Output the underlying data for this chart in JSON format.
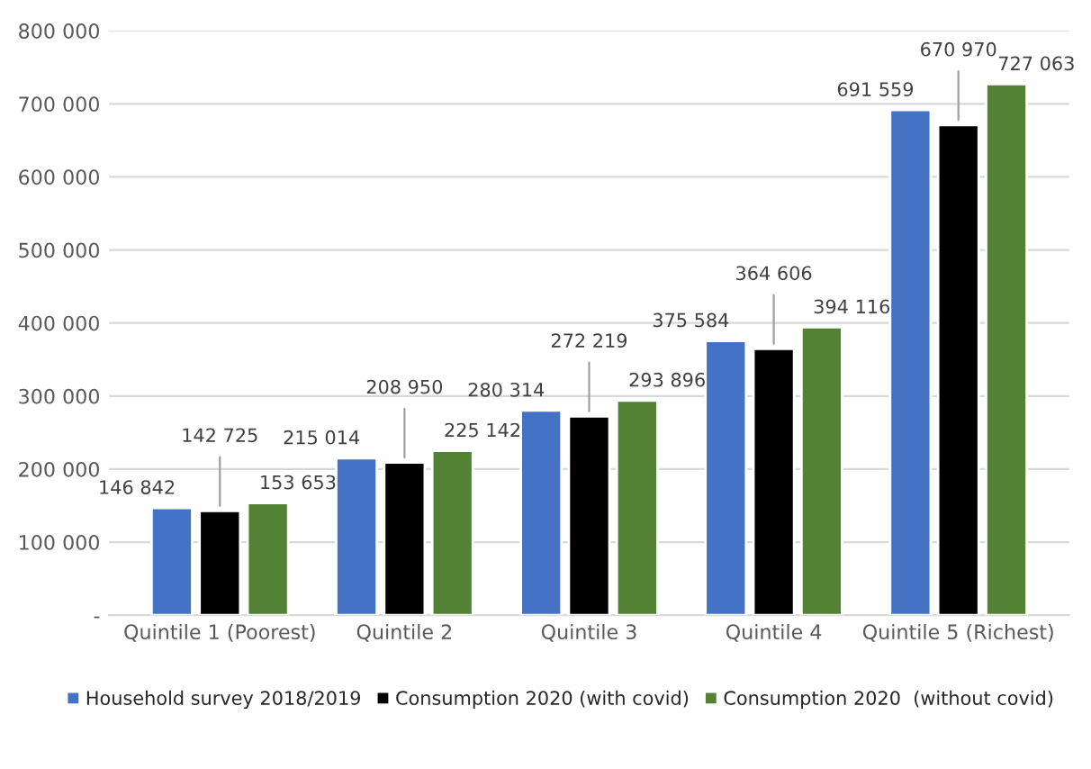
{
  "chart_data": {
    "type": "bar",
    "categories": [
      "Quintile 1 (Poorest)",
      "Quintile 2",
      "Quintile 3",
      "Quintile 4",
      "Quintile 5 (Richest)"
    ],
    "series": [
      {
        "name": "Household survey 2018/2019",
        "color": "#4472c4",
        "values": [
          146842,
          215014,
          280314,
          375584,
          691559
        ],
        "value_labels": [
          "146 842",
          "215 014",
          "280 314",
          "375 584",
          "691 559"
        ]
      },
      {
        "name": "Consumption 2020 (with covid)",
        "color": "#000000",
        "values": [
          142725,
          208950,
          272219,
          364606,
          670970
        ],
        "value_labels": [
          "142 725",
          "208 950",
          "272 219",
          "364 606",
          "670 970"
        ]
      },
      {
        "name": "Consumption 2020  (without covid)",
        "color": "#548235",
        "values": [
          153653,
          225142,
          293896,
          394116,
          727063
        ],
        "value_labels": [
          "153 653",
          "225 142",
          "293 896",
          "394 116",
          "727 063"
        ]
      }
    ],
    "ylim": [
      0,
      800000
    ],
    "yticks": [
      {
        "value": 0,
        "label": "-"
      },
      {
        "value": 100000,
        "label": "100 000"
      },
      {
        "value": 200000,
        "label": "200 000"
      },
      {
        "value": 300000,
        "label": "300 000"
      },
      {
        "value": 400000,
        "label": "400 000"
      },
      {
        "value": 500000,
        "label": "500 000"
      },
      {
        "value": 600000,
        "label": "600 000"
      },
      {
        "value": 700000,
        "label": "700 000"
      },
      {
        "value": 800000,
        "label": "800 000"
      }
    ],
    "grid": "y",
    "legend": "bottom"
  }
}
